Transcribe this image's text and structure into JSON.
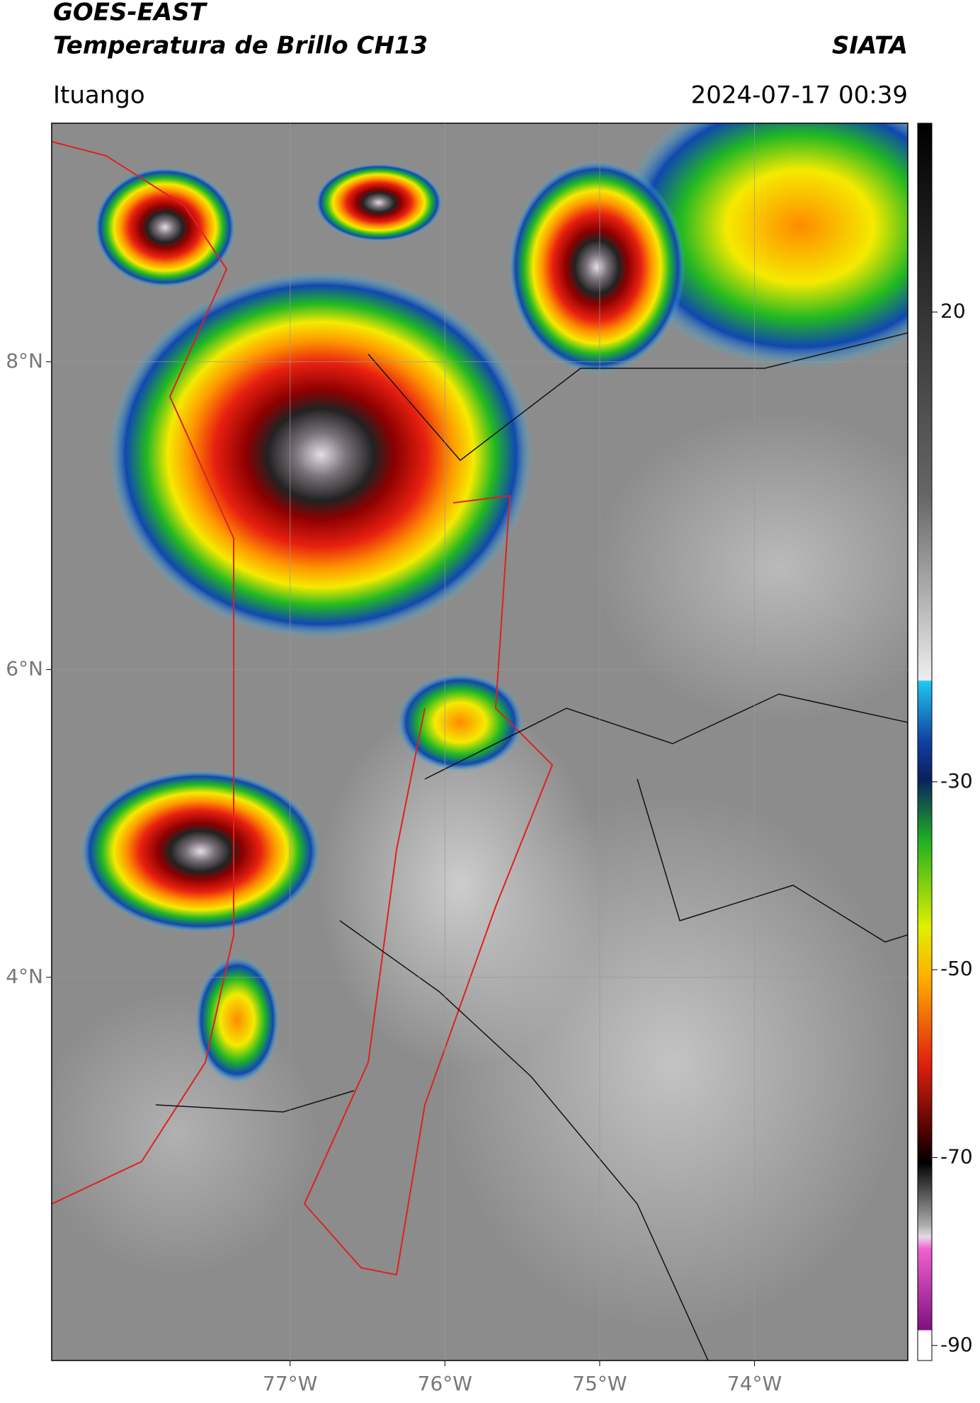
{
  "header": {
    "title": "GOES-EAST",
    "subtitle": "Temperatura de Brillo CH13",
    "source": "SIATA",
    "region": "Ituango",
    "datetime": "2024-07-17 00:39"
  },
  "map": {
    "xlim": [
      -78.54,
      -73.01
    ],
    "ylim": [
      1.51,
      9.55
    ],
    "xticks": [
      {
        "value": -77,
        "label": "77°W"
      },
      {
        "value": -76,
        "label": "76°W"
      },
      {
        "value": -75,
        "label": "75°W"
      },
      {
        "value": -74,
        "label": "74°W"
      }
    ],
    "yticks": [
      {
        "value": 4,
        "label": "4°N"
      },
      {
        "value": 6,
        "label": "6°N"
      },
      {
        "value": 8,
        "label": "8°N"
      }
    ],
    "grid": true
  },
  "colorbar": {
    "ylim": [
      -91.6,
      40.1
    ],
    "yticks": [
      20,
      -30,
      -50,
      -70,
      -90
    ]
  }
}
